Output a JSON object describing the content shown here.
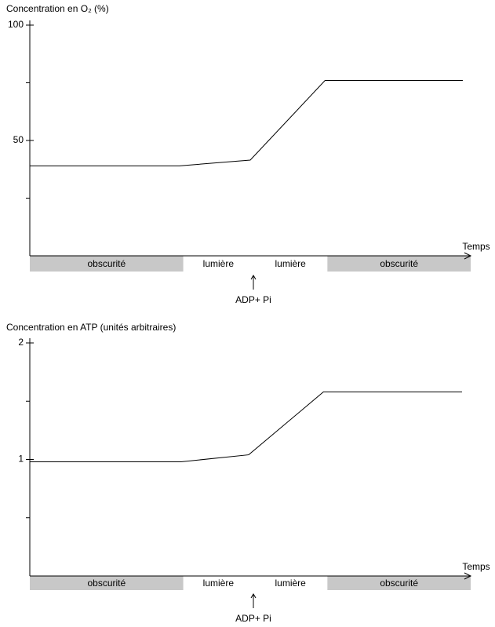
{
  "chart_data": [
    {
      "type": "line",
      "title": "Concentration en O₂ (%)",
      "xlabel": "Temps",
      "x": [
        0,
        19,
        28,
        37.5,
        55
      ],
      "values": [
        39,
        39,
        41.5,
        76,
        76
      ],
      "color": "#000000",
      "xlim": [
        0,
        56
      ],
      "ylim": [
        0,
        100
      ],
      "yticks": [
        50,
        100
      ],
      "minor_yticks": [
        25,
        75
      ],
      "periods": [
        {
          "label": "obscurité",
          "start": 0,
          "end": 19.5,
          "color": "#c8c8c8"
        },
        {
          "label": "lumière",
          "start": 19.5,
          "end": 28.4,
          "color": "#ffffff"
        },
        {
          "label": "lumière",
          "start": 28.4,
          "end": 37.8,
          "color": "#ffffff"
        },
        {
          "label": "obscurité",
          "start": 37.8,
          "end": 56,
          "color": "#c8c8c8"
        }
      ],
      "annotation": {
        "text": "ADP+ Pi",
        "x": 28.4
      }
    },
    {
      "type": "line",
      "title": "Concentration en ATP (unités arbitraires)",
      "xlabel": "Temps",
      "x": [
        0,
        19.2,
        27.8,
        37.3,
        54.9
      ],
      "values": [
        0.98,
        0.98,
        1.04,
        1.58,
        1.58
      ],
      "color": "#000000",
      "xlim": [
        0,
        56
      ],
      "ylim": [
        0,
        2
      ],
      "yticks": [
        1,
        2
      ],
      "minor_yticks": [
        0.5,
        1.5
      ],
      "periods": [
        {
          "label": "obscurité",
          "start": 0,
          "end": 19.5,
          "color": "#c8c8c8"
        },
        {
          "label": "lumière",
          "start": 19.5,
          "end": 28.4,
          "color": "#ffffff"
        },
        {
          "label": "lumière",
          "start": 28.4,
          "end": 37.8,
          "color": "#ffffff"
        },
        {
          "label": "obscurité",
          "start": 37.8,
          "end": 56,
          "color": "#c8c8c8"
        }
      ],
      "annotation": {
        "text": "ADP+ Pi",
        "x": 28.4
      }
    }
  ]
}
